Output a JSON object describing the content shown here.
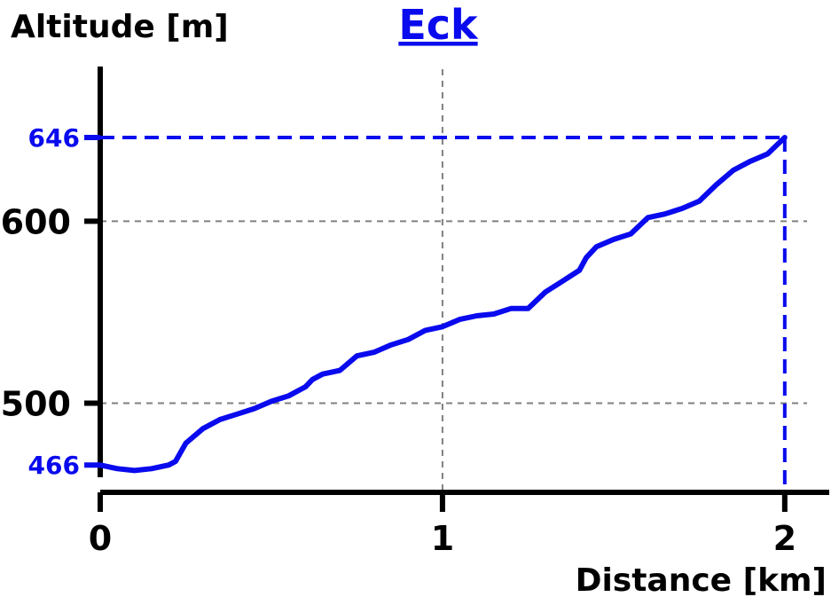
{
  "chart_data": {
    "type": "line",
    "title": "Eck",
    "xlabel": "Distance [km]",
    "ylabel": "Altitude [m]",
    "xlim": [
      0,
      2.13
    ],
    "ylim": [
      451,
      685
    ],
    "x_ticks": [
      {
        "value": 0,
        "label": "0"
      },
      {
        "value": 1,
        "label": "1"
      },
      {
        "value": 2,
        "label": "2"
      }
    ],
    "y_ticks": [
      {
        "value": 500,
        "label": "500"
      },
      {
        "value": 600,
        "label": "600"
      }
    ],
    "y_markers": [
      {
        "value": 466,
        "label": "466"
      },
      {
        "value": 646,
        "label": "646"
      }
    ],
    "max_marker": {
      "x": 2.0,
      "y": 646
    },
    "grid": true,
    "colors": {
      "line": "#0a0aee",
      "axis": "#000000",
      "grid": "#808080",
      "marker_text": "#0a0aee"
    },
    "series": [
      {
        "name": "",
        "x": [
          0,
          0.05,
          0.1,
          0.15,
          0.2,
          0.22,
          0.25,
          0.3,
          0.35,
          0.4,
          0.45,
          0.5,
          0.55,
          0.6,
          0.62,
          0.65,
          0.7,
          0.75,
          0.8,
          0.85,
          0.9,
          0.95,
          1.0,
          1.05,
          1.1,
          1.15,
          1.2,
          1.25,
          1.3,
          1.35,
          1.4,
          1.42,
          1.45,
          1.5,
          1.55,
          1.6,
          1.65,
          1.7,
          1.75,
          1.8,
          1.85,
          1.9,
          1.95,
          2.0
        ],
        "y": [
          466,
          464,
          463,
          464,
          466,
          468,
          478,
          486,
          491,
          494,
          497,
          501,
          504,
          509,
          513,
          516,
          518,
          526,
          528,
          532,
          535,
          540,
          542,
          546,
          548,
          549,
          552,
          552,
          561,
          567,
          573,
          580,
          586,
          590,
          593,
          602,
          604,
          607,
          611,
          620,
          628,
          633,
          637,
          646
        ]
      }
    ]
  }
}
